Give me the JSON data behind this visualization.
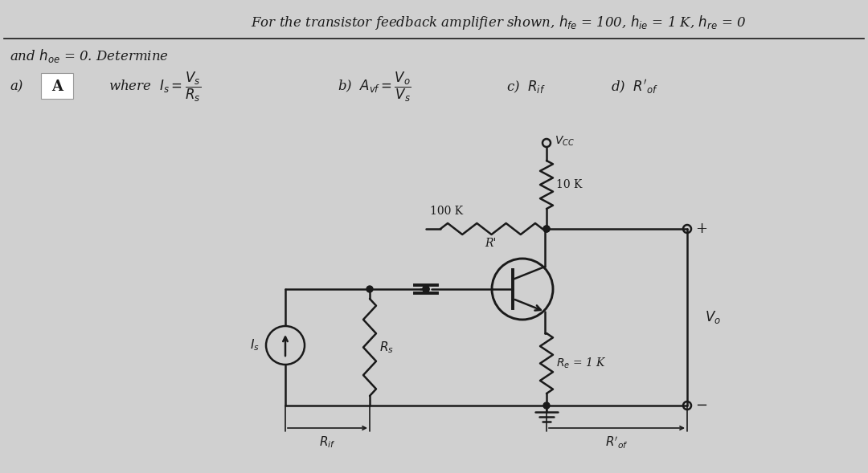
{
  "bg_color": "#d0d0d0",
  "line_color": "#1a1a1a",
  "text_color": "#1a1a1a",
  "title_text": "For the transistor feedback amplifier shown, $h_{fe}$ = 100, $h_{ie}$ = 1 K, $h_{re}$ = 0",
  "subtitle_text": "and $h_{oe}$ = 0. Determine",
  "R10K_label": "10 K",
  "R100K_label": "100 K",
  "Rprime_label": "R'",
  "Re_label": "$R_e$ = 1 K",
  "Rs_label": "$R_s$",
  "Is_label": "$I_s$",
  "Rif_label": "$R_{if}$",
  "Rof_label": "$R'_{of}$",
  "Vo_label": "$V_o$",
  "Vcc_label": "$V_{CC}$",
  "plus_label": "+",
  "minus_label": "−"
}
